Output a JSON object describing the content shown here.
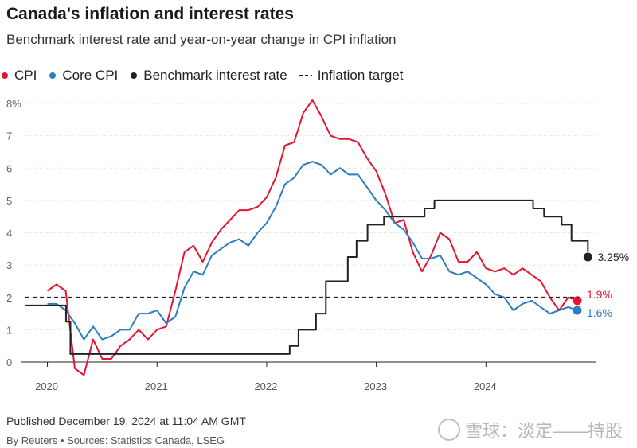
{
  "title": "Canada's inflation and interest rates",
  "subtitle": "Benchmark interest rate and year-on-year change in CPI inflation",
  "legend": [
    {
      "label": "CPI",
      "color": "#e4162f",
      "style": "dot"
    },
    {
      "label": "Core CPI",
      "color": "#2f7ebf",
      "style": "dot"
    },
    {
      "label": "Benchmark interest rate",
      "color": "#222222",
      "style": "dot"
    },
    {
      "label": "Inflation target",
      "color": "#222222",
      "style": "dash"
    }
  ],
  "footer": {
    "published": "Published December 19, 2024 at 11:04 AM GMT",
    "source": "By Reuters • Sources: Statistics Canada, LSEG"
  },
  "watermark": "雪球：淡定——持股",
  "chart_data": {
    "type": "line",
    "title": "Canada's inflation and interest rates",
    "subtitle": "Benchmark interest rate and year-on-year change in CPI inflation",
    "xlim": [
      2019.8,
      2025.0
    ],
    "ylim": [
      0,
      8
    ],
    "y_ticks": [
      0,
      1,
      2,
      3,
      4,
      5,
      6,
      7,
      8
    ],
    "y_tick_labels": [
      "0",
      "1",
      "2",
      "3",
      "4",
      "5",
      "6",
      "7",
      "8%"
    ],
    "x_ticks": [
      2020,
      2021,
      2022,
      2023,
      2024
    ],
    "grid": true,
    "legend_position": "top-left",
    "series": [
      {
        "name": "CPI",
        "color": "#e4162f",
        "end_label": "1.9%",
        "x": [
          2020.0,
          2020.083,
          2020.167,
          2020.25,
          2020.333,
          2020.417,
          2020.5,
          2020.583,
          2020.667,
          2020.75,
          2020.833,
          2020.917,
          2021.0,
          2021.083,
          2021.167,
          2021.25,
          2021.333,
          2021.417,
          2021.5,
          2021.583,
          2021.667,
          2021.75,
          2021.833,
          2021.917,
          2022.0,
          2022.083,
          2022.167,
          2022.25,
          2022.333,
          2022.417,
          2022.5,
          2022.583,
          2022.667,
          2022.75,
          2022.833,
          2022.917,
          2023.0,
          2023.083,
          2023.167,
          2023.25,
          2023.333,
          2023.417,
          2023.5,
          2023.583,
          2023.667,
          2023.75,
          2023.833,
          2023.917,
          2024.0,
          2024.083,
          2024.167,
          2024.25,
          2024.333,
          2024.417,
          2024.5,
          2024.583,
          2024.667,
          2024.75,
          2024.833
        ],
        "y": [
          2.2,
          2.4,
          2.2,
          -0.2,
          -0.4,
          0.7,
          0.1,
          0.1,
          0.5,
          0.7,
          1.0,
          0.7,
          1.0,
          1.1,
          2.2,
          3.4,
          3.6,
          3.1,
          3.7,
          4.1,
          4.4,
          4.7,
          4.7,
          4.8,
          5.1,
          5.7,
          6.7,
          6.8,
          7.7,
          8.1,
          7.6,
          7.0,
          6.9,
          6.9,
          6.8,
          6.3,
          5.9,
          5.2,
          4.3,
          4.4,
          3.4,
          2.8,
          3.3,
          4.0,
          3.8,
          3.1,
          3.1,
          3.4,
          2.9,
          2.8,
          2.9,
          2.7,
          2.9,
          2.7,
          2.5,
          2.0,
          1.6,
          2.0,
          1.9
        ]
      },
      {
        "name": "Core CPI",
        "color": "#2f7ebf",
        "end_label": "1.6%",
        "x": [
          2020.0,
          2020.083,
          2020.167,
          2020.25,
          2020.333,
          2020.417,
          2020.5,
          2020.583,
          2020.667,
          2020.75,
          2020.833,
          2020.917,
          2021.0,
          2021.083,
          2021.167,
          2021.25,
          2021.333,
          2021.417,
          2021.5,
          2021.583,
          2021.667,
          2021.75,
          2021.833,
          2021.917,
          2022.0,
          2022.083,
          2022.167,
          2022.25,
          2022.333,
          2022.417,
          2022.5,
          2022.583,
          2022.667,
          2022.75,
          2022.833,
          2022.917,
          2023.0,
          2023.083,
          2023.167,
          2023.25,
          2023.333,
          2023.417,
          2023.5,
          2023.583,
          2023.667,
          2023.75,
          2023.833,
          2023.917,
          2024.0,
          2024.083,
          2024.167,
          2024.25,
          2024.333,
          2024.417,
          2024.5,
          2024.583,
          2024.667,
          2024.75,
          2024.833
        ],
        "y": [
          1.8,
          1.8,
          1.6,
          1.2,
          0.7,
          1.1,
          0.7,
          0.8,
          1.0,
          1.0,
          1.5,
          1.5,
          1.6,
          1.2,
          1.4,
          2.3,
          2.8,
          2.7,
          3.3,
          3.5,
          3.7,
          3.8,
          3.6,
          4.0,
          4.3,
          4.8,
          5.5,
          5.7,
          6.1,
          6.2,
          6.1,
          5.8,
          6.0,
          5.8,
          5.8,
          5.4,
          5.0,
          4.7,
          4.3,
          4.1,
          3.7,
          3.2,
          3.2,
          3.3,
          2.8,
          2.7,
          2.8,
          2.6,
          2.4,
          2.1,
          2.0,
          1.6,
          1.8,
          1.9,
          1.7,
          1.5,
          1.6,
          1.7,
          1.6
        ]
      },
      {
        "name": "Benchmark interest rate",
        "color": "#222222",
        "step": true,
        "end_label": "3.25%",
        "x": [
          2019.8,
          2020.17,
          2020.21,
          2021.0,
          2022.0,
          2022.21,
          2022.29,
          2022.45,
          2022.54,
          2022.74,
          2022.82,
          2022.92,
          2023.07,
          2023.44,
          2023.53,
          2024.43,
          2024.53,
          2024.69,
          2024.78,
          2024.93
        ],
        "y": [
          1.75,
          1.25,
          0.25,
          0.25,
          0.25,
          0.5,
          1.0,
          1.5,
          2.5,
          3.25,
          3.75,
          4.25,
          4.5,
          4.75,
          5.0,
          4.75,
          4.5,
          4.25,
          3.75,
          3.25
        ]
      },
      {
        "name": "Inflation target",
        "color": "#222222",
        "dashed": true,
        "x": [
          2019.8,
          2024.85
        ],
        "y": [
          2,
          2
        ]
      }
    ]
  }
}
